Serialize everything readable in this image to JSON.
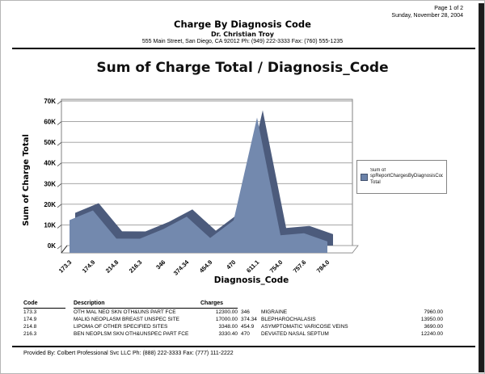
{
  "page": {
    "page_number": "Page 1 of 2",
    "date": "Sunday, November 28, 2004",
    "report_title": "Charge By Diagnosis Code",
    "doctor": "Dr. Christian Troy",
    "address": "555 Main Street, San Diego, CA 92012 Ph: (949) 222-3333 Fax: (760) 555-1235",
    "footer": "Provided By: Colbert Professional Svc LLC Ph: (888) 222-3333 Fax: (777) 111-2222"
  },
  "chart_data": {
    "type": "area",
    "title": "Sum of Charge Total / Diagnosis_Code",
    "xlabel": "Diagnosis_Code",
    "ylabel": "Sum of Charge Total",
    "categories": [
      "173.3",
      "174.9",
      "214.8",
      "216.3",
      "346",
      "374.34",
      "454.9",
      "470",
      "611.1",
      "754.0",
      "757.6",
      "784.0"
    ],
    "values": [
      12300,
      17000,
      3348,
      3330.4,
      7960,
      13950,
      3690,
      12240,
      62000,
      5000,
      6000,
      2000
    ],
    "ylim": [
      0,
      70000
    ],
    "yticks": [
      "0K",
      "10K",
      "20K",
      "30K",
      "40K",
      "50K",
      "60K",
      "70K"
    ],
    "grid": true,
    "legend_position": "right",
    "series_name": "Sum of spReportChargesByDiagnosisCode./Charge Total",
    "legend_lines": [
      "Sum of",
      "spReportChargesByDiagnosisCode./Charge",
      "Total"
    ],
    "colors": {
      "area_front": "#7389ae",
      "area_top": "#4c5b7c",
      "gridline": "#999999",
      "frame": "#808080",
      "swatch": "#6b82a9",
      "swatch_border": "#44536f"
    }
  },
  "table": {
    "headers": [
      "Code",
      "Description",
      "Charges"
    ],
    "rows_left": [
      [
        "173.3",
        "OTH MAL NEO SKN OTH&UNS PART FCE",
        "12300.00"
      ],
      [
        "174.9",
        "MALIG NEOPLASM BREAST UNSPEC SITE",
        "17000.00"
      ],
      [
        "214.8",
        "LIPOMA OF OTHER SPECIFIED SITES",
        "3348.00"
      ],
      [
        "216.3",
        "BEN NEOPLSM SKN OTH&UNSPEC PART FCE",
        "3330.40"
      ]
    ],
    "rows_right": [
      [
        "346",
        "MIGRAINE",
        "7960.00"
      ],
      [
        "374.34",
        "BLEPHAROCHALASIS",
        "13950.00"
      ],
      [
        "454.9",
        "ASYMPTOMATIC VARICOSE VEINS",
        "3690.00"
      ],
      [
        "470",
        "DEVIATED NASAL SEPTUM",
        "12240.00"
      ]
    ]
  }
}
